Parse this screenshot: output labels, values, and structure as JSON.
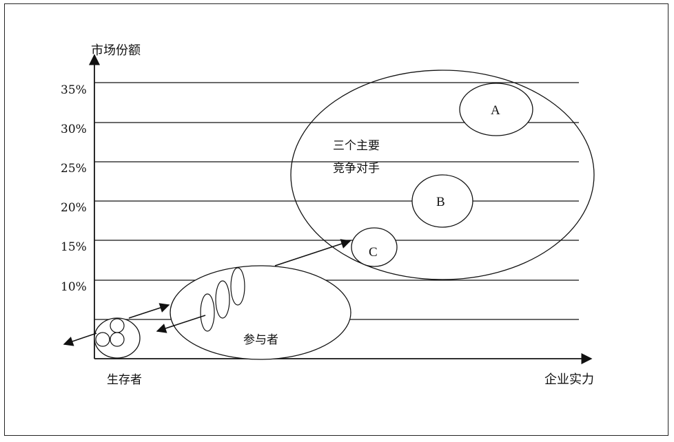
{
  "axes": {
    "y_title": "市场份额",
    "x_title": "企业实力",
    "y_ticks": [
      "35%",
      "30%",
      "25%",
      "20%",
      "15%",
      "10%"
    ]
  },
  "groups": {
    "survivors": "生存者",
    "participants": "参与者",
    "major_line1": "三个主要",
    "major_line2": "竞争对手"
  },
  "competitors": {
    "a": "A",
    "b": "B",
    "c": "C"
  }
}
